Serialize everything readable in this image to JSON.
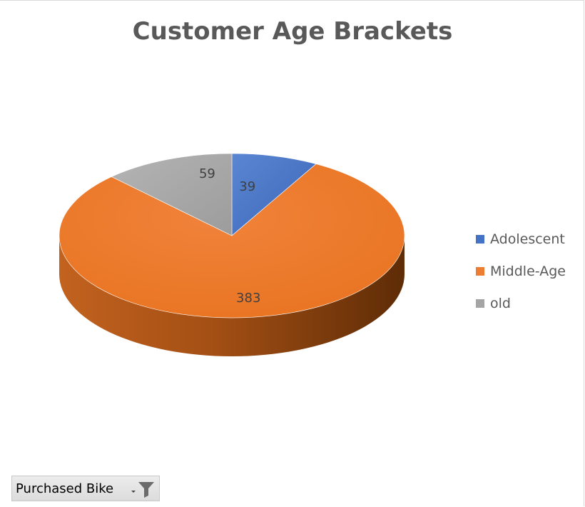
{
  "chart_data": {
    "type": "pie",
    "title": "Customer Age Brackets",
    "categories": [
      "Adolescent",
      "Middle-Age",
      "old"
    ],
    "values": [
      39,
      383,
      59
    ],
    "colors": [
      "#4472C4",
      "#ED7D31",
      "#A5A5A5"
    ],
    "data_labels": true,
    "legend_position": "right",
    "style": "3d-pie"
  },
  "filter_button": {
    "label": "Purchased Bike",
    "icon": "filter-dropdown-icon"
  }
}
